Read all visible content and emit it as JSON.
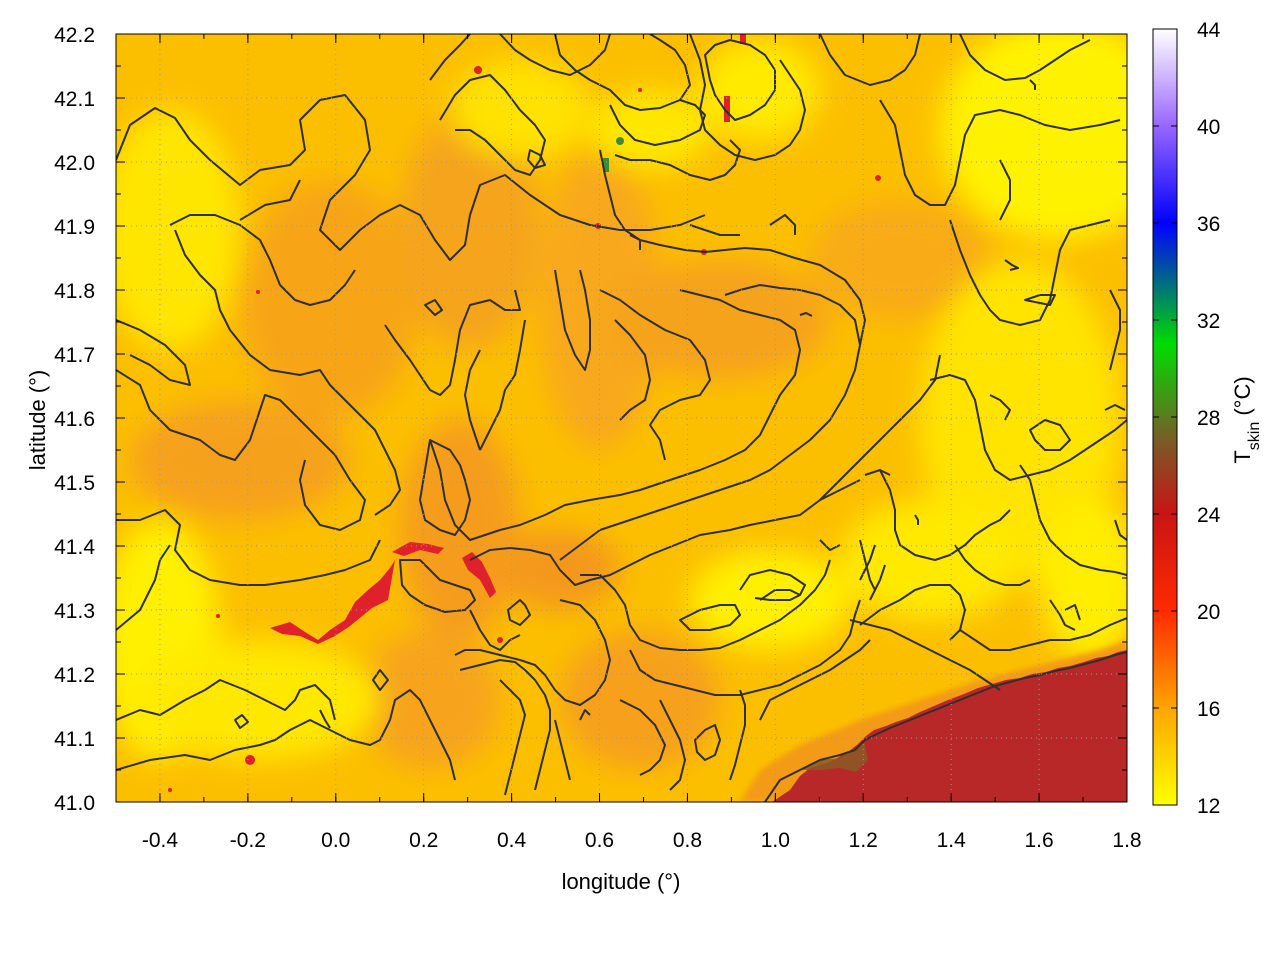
{
  "chart_data": {
    "type": "heatmap",
    "title": "",
    "xlabel": "longitude (°)",
    "ylabel": "latitude (°)",
    "xlim": [
      -0.5,
      1.8
    ],
    "ylim": [
      41.0,
      42.2
    ],
    "x_ticks": [
      "-0.4",
      "-0.2",
      "0.0",
      "0.2",
      "0.4",
      "0.6",
      "0.8",
      "1.0",
      "1.2",
      "1.4",
      "1.6",
      "1.8"
    ],
    "y_ticks": [
      "41.0",
      "41.1",
      "41.2",
      "41.3",
      "41.4",
      "41.5",
      "41.6",
      "41.7",
      "41.8",
      "41.9",
      "42.0",
      "42.1",
      "42.2"
    ],
    "colorbar": {
      "label_main": "T",
      "label_sub": "skin",
      "label_unit": " (°C)",
      "range": [
        12,
        44
      ],
      "ticks": [
        "12",
        "16",
        "20",
        "24",
        "28",
        "32",
        "36",
        "40",
        "44"
      ],
      "colors": [
        {
          "v": 12,
          "c": "#ffff00"
        },
        {
          "v": 16,
          "c": "#ffa500"
        },
        {
          "v": 20,
          "c": "#ff2a00"
        },
        {
          "v": 24,
          "c": "#c81414"
        },
        {
          "v": 27,
          "c": "#7a5a28"
        },
        {
          "v": 31,
          "c": "#00dc00"
        },
        {
          "v": 36,
          "c": "#0000ff"
        },
        {
          "v": 40,
          "c": "#9966ff"
        },
        {
          "v": 44,
          "c": "#ffffff"
        }
      ]
    },
    "grid": true,
    "contours": "black topographic contour lines over the field",
    "field_features": [
      {
        "region": "sea, south-east corner",
        "value": 25
      },
      {
        "region": "coastal strip",
        "value": 17
      },
      {
        "region": "inland plateau",
        "value": 14
      }
    ]
  }
}
